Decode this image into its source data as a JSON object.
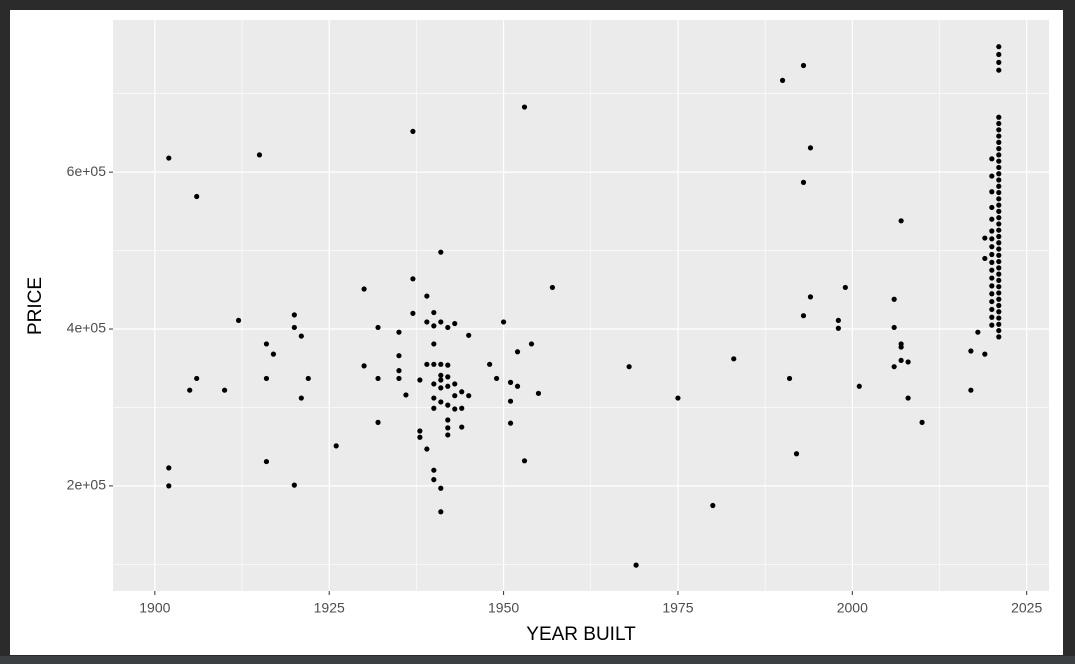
{
  "chart_data": {
    "type": "scatter",
    "x_label": "YEAR BUILT",
    "y_label": "PRICE",
    "color": "#000000",
    "grid": true,
    "xlim": [
      1894,
      2028.2
    ],
    "ylim": [
      66000,
      794000
    ],
    "xticks": [
      1900,
      1925,
      1950,
      1975,
      2000,
      2025
    ],
    "x_minor_grid": [
      1912.5,
      1937.5,
      1962.5,
      1987.5,
      2012.5
    ],
    "yticks": [
      {
        "value": 200000,
        "label": "2e+05"
      },
      {
        "value": 400000,
        "label": "4e+05"
      },
      {
        "value": 600000,
        "label": "6e+05"
      }
    ],
    "y_minor_grid": [
      100000,
      300000,
      500000,
      700000
    ],
    "x": [
      1902,
      1902,
      1902,
      1906,
      1905,
      1906,
      1910,
      1912,
      1915,
      1916,
      1916,
      1916,
      1917,
      1920,
      1920,
      1920,
      1921,
      1921,
      1922,
      1926,
      1930,
      1930,
      1932,
      1932,
      1932,
      1935,
      1935,
      1935,
      1935,
      1936,
      1937,
      1937,
      1937,
      1938,
      1938,
      1938,
      1939,
      1939,
      1939,
      1939,
      1940,
      1940,
      1940,
      1940,
      1940,
      1940,
      1940,
      1940,
      1940,
      1941,
      1941,
      1941,
      1941,
      1941,
      1941,
      1941,
      1941,
      1941,
      1942,
      1942,
      1942,
      1942,
      1942,
      1942,
      1942,
      1942,
      1943,
      1943,
      1943,
      1943,
      1944,
      1944,
      1944,
      1945,
      1945,
      1948,
      1949,
      1950,
      1951,
      1951,
      1951,
      1952,
      1952,
      1953,
      1953,
      1954,
      1955,
      1957,
      1968,
      1969,
      1975,
      1980,
      1983,
      1990,
      1991,
      1992,
      1993,
      1993,
      1993,
      1994,
      1994,
      1998,
      1998,
      1999,
      2001,
      2006,
      2006,
      2006,
      2007,
      2007,
      2007,
      2007,
      2008,
      2008,
      2010,
      2017,
      2017,
      2018,
      2019,
      2019,
      2019,
      2020,
      2020,
      2020,
      2020,
      2020,
      2020,
      2020,
      2020,
      2020,
      2020,
      2020,
      2020,
      2020,
      2020,
      2020,
      2020,
      2020,
      2020,
      2021,
      2021,
      2021,
      2021,
      2021,
      2021,
      2021,
      2021,
      2021,
      2021,
      2021,
      2021,
      2021,
      2021,
      2021,
      2021,
      2021,
      2021,
      2021,
      2021,
      2021,
      2021,
      2021,
      2021,
      2021,
      2021,
      2021,
      2021,
      2021,
      2021,
      2021,
      2021,
      2021,
      2021,
      2021,
      2021,
      2021,
      2021,
      2021,
      2021
    ],
    "values": [
      618000,
      223000,
      200000,
      569000,
      322000,
      337000,
      322000,
      411000,
      622000,
      381000,
      337000,
      231000,
      368000,
      418000,
      402000,
      201000,
      391000,
      312000,
      337000,
      251000,
      451000,
      353000,
      402000,
      337000,
      281000,
      396000,
      366000,
      347000,
      337000,
      316000,
      652000,
      464000,
      420000,
      335000,
      270000,
      262000,
      442000,
      409000,
      355000,
      247000,
      421000,
      404000,
      381000,
      355000,
      330000,
      312000,
      299000,
      220000,
      208000,
      498000,
      409000,
      355000,
      341000,
      335000,
      325000,
      307000,
      197000,
      167000,
      402000,
      354000,
      339000,
      327000,
      303000,
      284000,
      274000,
      265000,
      407000,
      330000,
      315000,
      298000,
      320000,
      299000,
      275000,
      392000,
      315000,
      355000,
      337000,
      409000,
      332000,
      308000,
      280000,
      327000,
      371000,
      683000,
      232000,
      381000,
      318000,
      453000,
      352000,
      99000,
      312000,
      175000,
      362000,
      717000,
      337000,
      241000,
      736000,
      587000,
      417000,
      631000,
      441000,
      411000,
      401000,
      453000,
      327000,
      438000,
      402000,
      352000,
      538000,
      381000,
      377000,
      360000,
      358000,
      312000,
      281000,
      372000,
      322000,
      396000,
      368000,
      490000,
      516000,
      405000,
      415000,
      425000,
      435000,
      445000,
      455000,
      465000,
      475000,
      485000,
      495000,
      505000,
      515000,
      525000,
      540000,
      555000,
      575000,
      595000,
      617000,
      390000,
      398000,
      406000,
      414000,
      422000,
      430000,
      438000,
      446000,
      454000,
      462000,
      470000,
      478000,
      486000,
      494000,
      502000,
      510000,
      518000,
      526000,
      534000,
      542000,
      550000,
      558000,
      566000,
      574000,
      582000,
      590000,
      598000,
      606000,
      614000,
      622000,
      630000,
      638000,
      646000,
      654000,
      662000,
      670000,
      730000,
      740000,
      750000,
      760000
    ]
  }
}
